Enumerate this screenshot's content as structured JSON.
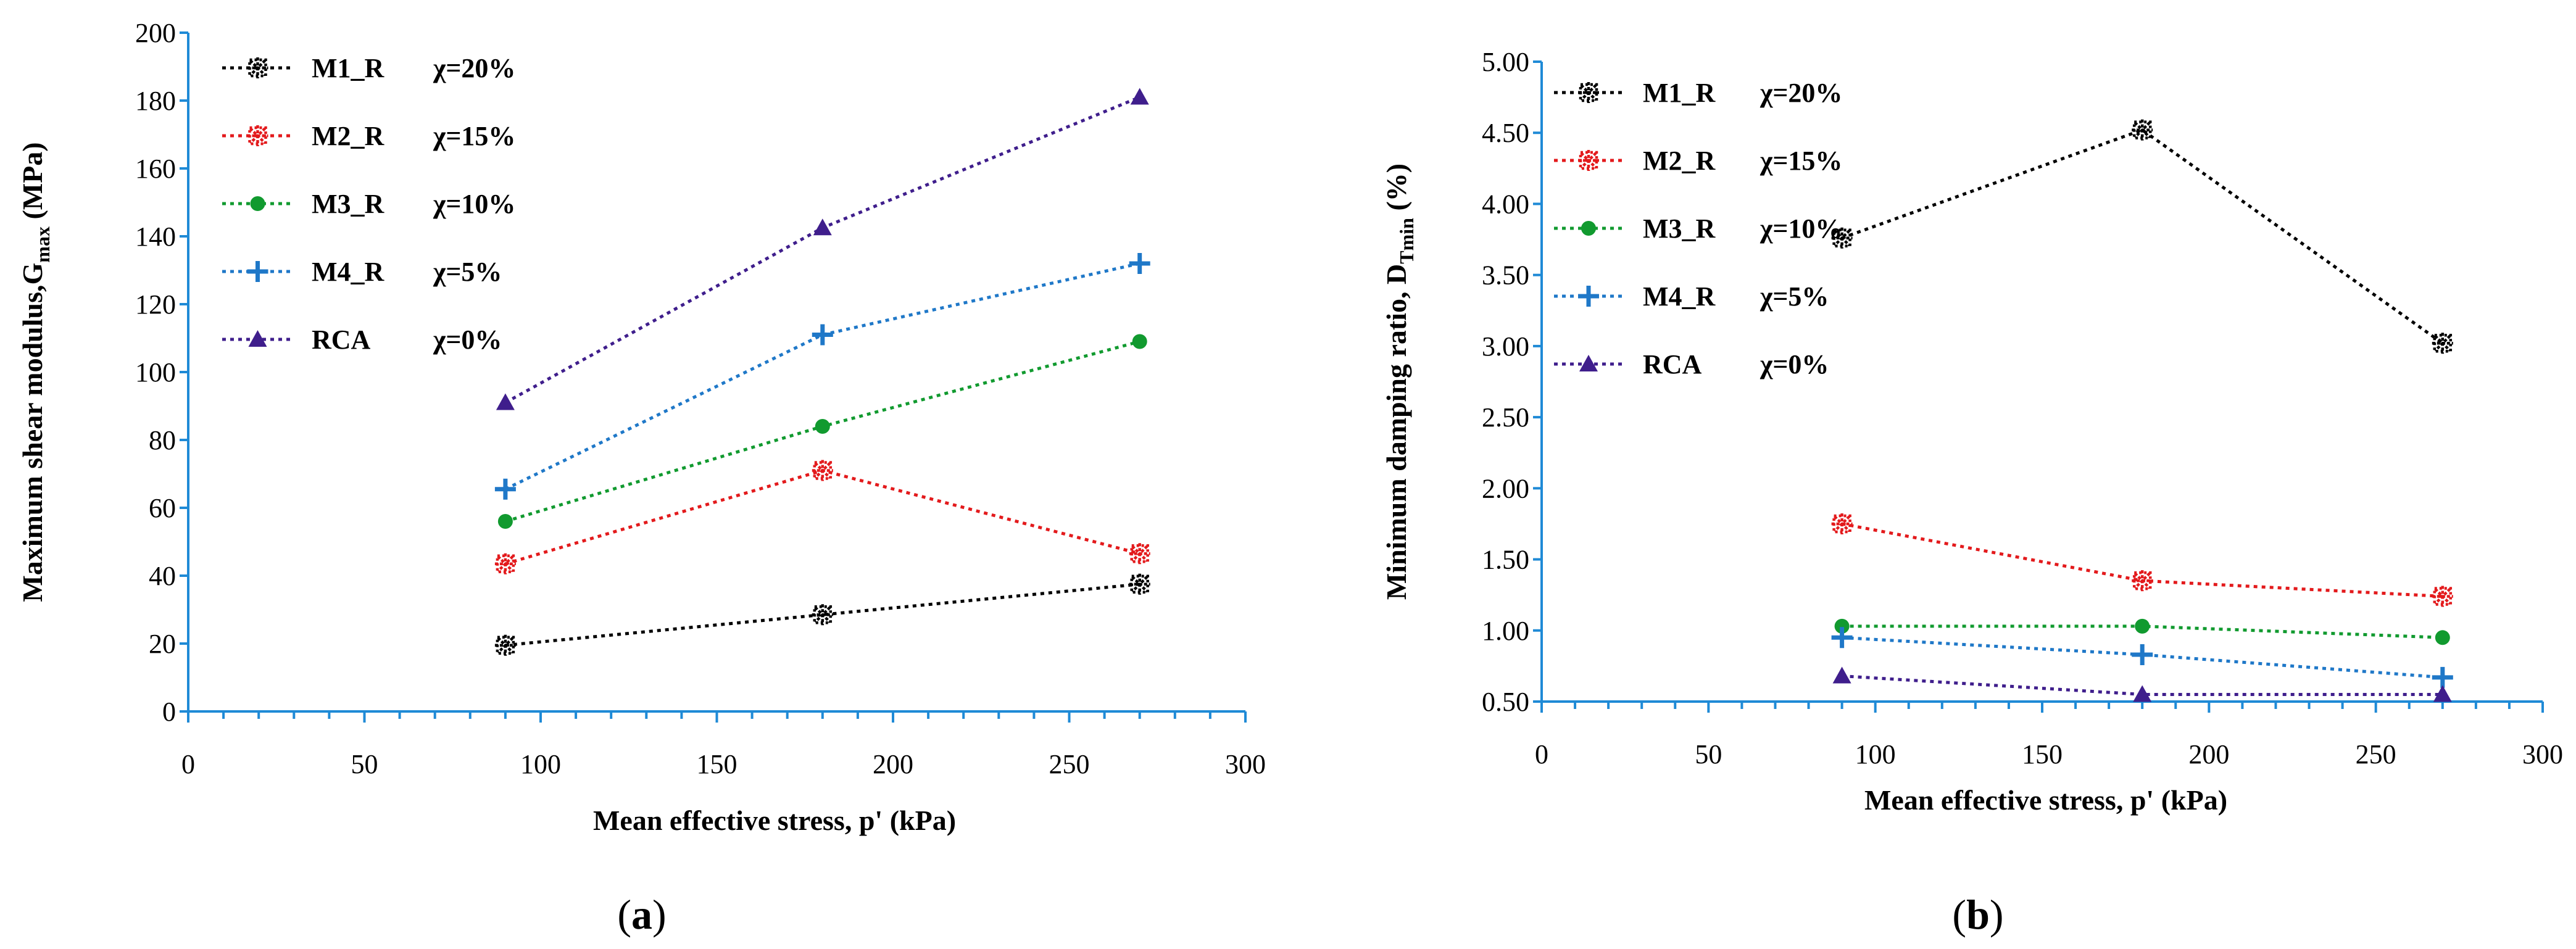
{
  "chart_data": [
    {
      "type": "line",
      "panel_label": "(a)",
      "panel_letter": "a",
      "xlabel": "Mean effective stress, p' (kPa)",
      "ylabel": "Maximum shear modulus,G",
      "ylabel_sub": "max",
      "ylabel_unit": " (MPa)",
      "xlim": [
        0,
        300
      ],
      "ylim": [
        0,
        200
      ],
      "xticks": [
        0,
        50,
        100,
        150,
        200,
        250,
        300
      ],
      "yticks": [
        0,
        20,
        40,
        60,
        80,
        100,
        120,
        140,
        160,
        180,
        200
      ],
      "x": [
        90,
        180,
        270
      ],
      "legend_position": "top-left",
      "series": [
        {
          "name": "M1_R",
          "chi": "χ=20%",
          "color": "#000000",
          "marker": "star",
          "values": [
            19.5,
            28.5,
            37.5
          ]
        },
        {
          "name": "M2_R",
          "chi": "χ=15%",
          "color": "#e31a1c",
          "marker": "star",
          "values": [
            43.5,
            71,
            46.5
          ]
        },
        {
          "name": "M3_R",
          "chi": "χ=10%",
          "color": "#119a2f",
          "marker": "circle",
          "values": [
            56,
            84,
            109
          ]
        },
        {
          "name": "M4_R",
          "chi": "χ=5%",
          "color": "#1f78c8",
          "marker": "plus",
          "values": [
            65.5,
            111,
            132
          ]
        },
        {
          "name": "RCA",
          "chi": "χ=0%",
          "color": "#3f1e8c",
          "marker": "triangle",
          "values": [
            91,
            142.5,
            181
          ]
        }
      ]
    },
    {
      "type": "line",
      "panel_label": "(b)",
      "panel_letter": "b",
      "xlabel": "Mean effective stress, p' (kPa)",
      "ylabel": "Minimum damping ratio, D",
      "ylabel_sub": "Tmin",
      "ylabel_unit": " (%)",
      "xlim": [
        0,
        300
      ],
      "ylim": [
        0.5,
        5.0
      ],
      "xticks": [
        0,
        50,
        100,
        150,
        200,
        250,
        300
      ],
      "yticks": [
        "0.50",
        "1.00",
        "1.50",
        "2.00",
        "2.50",
        "3.00",
        "3.50",
        "4.00",
        "4.50",
        "5.00"
      ],
      "x": [
        90,
        180,
        270
      ],
      "legend_position": "top-left",
      "series": [
        {
          "name": "M1_R",
          "chi": "χ=20%",
          "color": "#000000",
          "marker": "star",
          "values": [
            3.76,
            4.52,
            3.02
          ]
        },
        {
          "name": "M2_R",
          "chi": "χ=15%",
          "color": "#e31a1c",
          "marker": "star",
          "values": [
            1.75,
            1.35,
            1.24
          ]
        },
        {
          "name": "M3_R",
          "chi": "χ=10%",
          "color": "#119a2f",
          "marker": "circle",
          "values": [
            1.03,
            1.03,
            0.95
          ]
        },
        {
          "name": "M4_R",
          "chi": "χ=5%",
          "color": "#1f78c8",
          "marker": "plus",
          "values": [
            0.95,
            0.83,
            0.67
          ]
        },
        {
          "name": "RCA",
          "chi": "χ=0%",
          "color": "#3f1e8c",
          "marker": "triangle",
          "values": [
            0.68,
            0.55,
            0.55
          ]
        }
      ]
    }
  ]
}
